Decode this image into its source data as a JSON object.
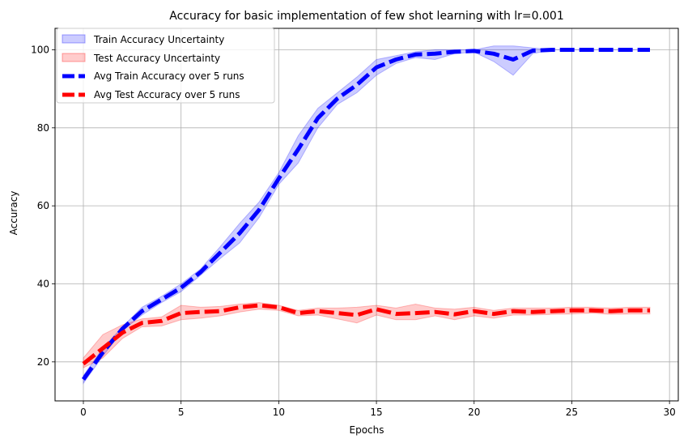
{
  "chart_data": {
    "type": "line",
    "title": "Accuracy for basic implementation of few shot learning with lr=0.001",
    "xlabel": "Epochs",
    "ylabel": "Accuracy",
    "xlim": [
      -1.45,
      30.45
    ],
    "ylim": [
      10,
      105.5
    ],
    "xticks": [
      0,
      5,
      10,
      15,
      20,
      25,
      30
    ],
    "yticks": [
      20,
      40,
      60,
      80,
      100
    ],
    "grid": true,
    "legend_position": "top-left",
    "x": [
      0,
      1,
      2,
      3,
      4,
      5,
      6,
      7,
      8,
      9,
      10,
      11,
      12,
      13,
      14,
      15,
      16,
      17,
      18,
      19,
      20,
      21,
      22,
      23,
      24,
      25,
      26,
      27,
      28,
      29
    ],
    "series": [
      {
        "name": "Avg Train Accuracy over 5 runs",
        "color": "#0000ff",
        "values": [
          15.5,
          22.5,
          28.5,
          33.0,
          36.0,
          39.0,
          43.0,
          48.0,
          53.0,
          59.0,
          67.0,
          74.5,
          82.5,
          87.5,
          91.0,
          95.5,
          97.5,
          98.8,
          99.0,
          99.5,
          99.7,
          99.0,
          97.5,
          99.8,
          100,
          100,
          100,
          100,
          100,
          100
        ]
      },
      {
        "name": "Avg Test Accuracy over 5 runs",
        "color": "#ff0000",
        "values": [
          19.5,
          23.5,
          27.5,
          30.0,
          30.5,
          32.5,
          32.8,
          33.0,
          34.0,
          34.5,
          34.0,
          32.5,
          33.0,
          32.5,
          32.0,
          33.5,
          32.3,
          32.5,
          32.8,
          32.2,
          33.0,
          32.3,
          33.0,
          32.8,
          33.0,
          33.2,
          33.2,
          33.0,
          33.2,
          33.2
        ]
      }
    ],
    "bands": [
      {
        "name": "Train Accuracy Uncertainty",
        "color": "#0000ff",
        "upper": [
          16.5,
          23.5,
          29.0,
          34.0,
          36.8,
          40.0,
          43.8,
          49.5,
          55.5,
          61.0,
          68.5,
          78.0,
          85.0,
          89.0,
          93.0,
          97.5,
          98.5,
          99.5,
          100,
          100,
          100,
          101.0,
          101.0,
          100.5,
          100,
          100,
          100,
          100,
          100,
          100
        ],
        "lower": [
          14.5,
          21.5,
          28.0,
          32.0,
          35.2,
          38.0,
          42.2,
          46.5,
          50.5,
          57.0,
          65.5,
          71.0,
          80.0,
          86.0,
          89.0,
          93.5,
          96.5,
          98.0,
          97.5,
          99.0,
          99.4,
          97.0,
          93.5,
          99.0,
          100,
          100,
          100,
          100,
          100,
          100
        ]
      },
      {
        "name": "Test Accuracy Uncertainty",
        "color": "#ff0000",
        "upper": [
          21.0,
          27.0,
          29.5,
          31.0,
          31.5,
          34.5,
          34.0,
          34.2,
          34.8,
          35.2,
          34.5,
          33.2,
          33.8,
          33.8,
          34.0,
          34.5,
          33.8,
          34.8,
          33.8,
          33.5,
          34.0,
          33.2,
          33.8,
          33.8,
          33.8,
          34.0,
          34.0,
          33.8,
          34.0,
          34.0
        ],
        "lower": [
          18.5,
          21.0,
          26.0,
          29.0,
          29.2,
          30.8,
          31.2,
          31.8,
          32.8,
          33.5,
          33.2,
          31.8,
          32.0,
          31.0,
          30.0,
          32.0,
          30.8,
          30.8,
          31.8,
          30.8,
          31.8,
          31.2,
          32.0,
          32.0,
          32.2,
          32.3,
          32.5,
          32.2,
          32.3,
          32.3
        ]
      }
    ]
  }
}
